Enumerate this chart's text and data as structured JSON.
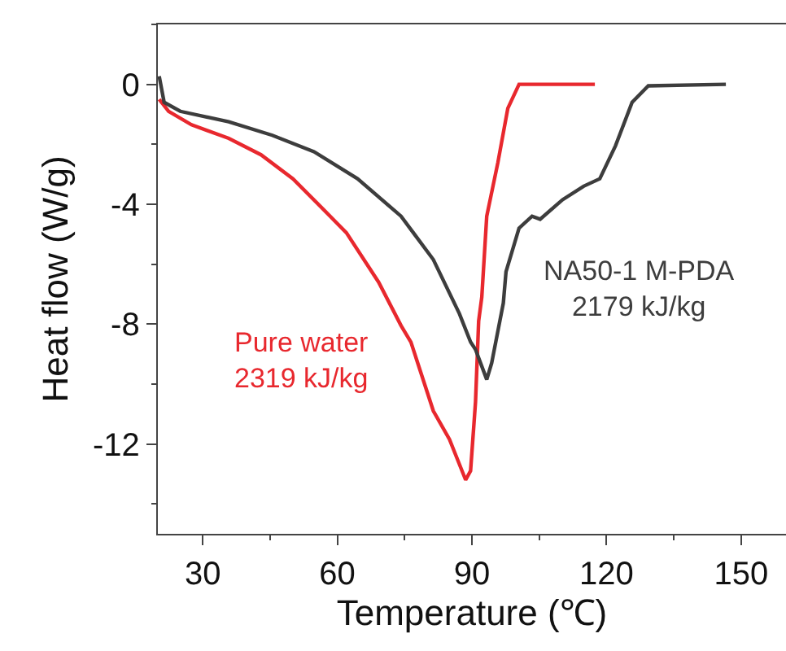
{
  "chart_data": {
    "type": "line",
    "xlabel": "Temperature (℃)",
    "ylabel": "Heat flow (W/g)",
    "xlim": [
      20,
      160
    ],
    "ylim": [
      -15,
      2
    ],
    "xticks": [
      30,
      60,
      90,
      120,
      150
    ],
    "yticks": [
      0,
      -4,
      -8,
      -12
    ],
    "legend": false,
    "marker": "none",
    "line_style": "solid",
    "series": [
      {
        "name": "Pure water\n2319 kJ/kg",
        "color": "#e8282e",
        "x": [
          20.3,
          22.4,
          27.5,
          35.8,
          43,
          50.1,
          58.4,
          62,
          69.2,
          74.2,
          76.4,
          81.4,
          85,
          88.6,
          89.7,
          90.8,
          91.5,
          92.2,
          93.3,
          95.8,
          98,
          100.5,
          117.4
        ],
        "values": [
          -0.5,
          -0.9,
          -1.35,
          -1.8,
          -2.35,
          -3.15,
          -4.4,
          -4.95,
          -6.6,
          -8.05,
          -8.6,
          -10.9,
          -11.85,
          -13.2,
          -12.9,
          -10.6,
          -7.9,
          -7.1,
          -4.4,
          -2.6,
          -0.8,
          0,
          0
        ]
      },
      {
        "name": "NA50-1 M-PDA\n2179 kJ/kg",
        "color": "#3d3d3d",
        "x": [
          20.3,
          21.4,
          25,
          35.8,
          45.5,
          54.8,
          64.5,
          74.2,
          81.4,
          87.2,
          89.7,
          90.8,
          93.3,
          94.4,
          97,
          97.6,
          100.5,
          103.4,
          105.2,
          110.2,
          114.9,
          118.5,
          122,
          125.7,
          129.3,
          146.6
        ],
        "values": [
          0.27,
          -0.6,
          -0.9,
          -1.25,
          -1.7,
          -2.25,
          -3.15,
          -4.4,
          -5.85,
          -7.65,
          -8.6,
          -8.85,
          -9.85,
          -9.3,
          -7.3,
          -6.25,
          -4.8,
          -4.4,
          -4.5,
          -3.85,
          -3.4,
          -3.15,
          -2.05,
          -0.6,
          -0.05,
          0
        ]
      }
    ]
  }
}
